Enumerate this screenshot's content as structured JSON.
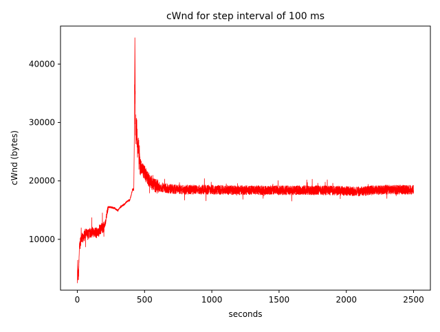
{
  "chart_data": {
    "type": "line",
    "title": "cWnd for step interval of 100 ms",
    "xlabel": "seconds",
    "ylabel": "cWnd (bytes)",
    "xlim": [
      -125,
      2625
    ],
    "ylim": [
      1300,
      46500
    ],
    "xticks": [
      0,
      500,
      1000,
      1500,
      2000,
      2500
    ],
    "xtick_labels": [
      "0",
      "500",
      "1000",
      "1500",
      "2000",
      "2500"
    ],
    "yticks": [
      10000,
      20000,
      30000,
      40000
    ],
    "ytick_labels": [
      "10000",
      "20000",
      "30000",
      "40000"
    ],
    "grid": false,
    "series": [
      {
        "color": "#ff0000",
        "noise_regime": [
          {
            "from": 0,
            "to": 10,
            "amp": 1000
          },
          {
            "from": 10,
            "to": 200,
            "amp": 900
          },
          {
            "from": 200,
            "to": 230,
            "amp": 500
          },
          {
            "from": 230,
            "to": 380,
            "amp": 150
          },
          {
            "from": 380,
            "to": 425,
            "amp": 200
          },
          {
            "from": 425,
            "to": 470,
            "amp": 2500
          },
          {
            "from": 470,
            "to": 600,
            "amp": 1200
          },
          {
            "from": 600,
            "to": 2500,
            "amp": 800
          }
        ],
        "points": [
          [
            0,
            3500
          ],
          [
            3,
            5800
          ],
          [
            6,
            3400
          ],
          [
            10,
            4000
          ],
          [
            15,
            8500
          ],
          [
            20,
            9000
          ],
          [
            30,
            10500
          ],
          [
            40,
            10000
          ],
          [
            60,
            11000
          ],
          [
            80,
            10800
          ],
          [
            100,
            11200
          ],
          [
            130,
            11300
          ],
          [
            150,
            11000
          ],
          [
            170,
            11800
          ],
          [
            190,
            12000
          ],
          [
            200,
            12200
          ],
          [
            210,
            13000
          ],
          [
            220,
            14500
          ],
          [
            230,
            15500
          ],
          [
            250,
            15500
          ],
          [
            280,
            15300
          ],
          [
            300,
            14900
          ],
          [
            320,
            15500
          ],
          [
            350,
            16000
          ],
          [
            370,
            16500
          ],
          [
            390,
            16700
          ],
          [
            400,
            17500
          ],
          [
            410,
            18500
          ],
          [
            420,
            18500
          ],
          [
            425,
            30000
          ],
          [
            428,
            44500
          ],
          [
            432,
            30000
          ],
          [
            436,
            28000
          ],
          [
            440,
            29000
          ],
          [
            445,
            27000
          ],
          [
            455,
            25000
          ],
          [
            465,
            23000
          ],
          [
            480,
            22000
          ],
          [
            500,
            21500
          ],
          [
            520,
            20500
          ],
          [
            540,
            20000
          ],
          [
            560,
            19500
          ],
          [
            580,
            19200
          ],
          [
            600,
            19000
          ],
          [
            700,
            18600
          ],
          [
            800,
            18500
          ],
          [
            1000,
            18500
          ],
          [
            1200,
            18400
          ],
          [
            1500,
            18400
          ],
          [
            1800,
            18400
          ],
          [
            2000,
            18300
          ],
          [
            2100,
            18200
          ],
          [
            2200,
            18400
          ],
          [
            2300,
            18500
          ],
          [
            2400,
            18500
          ],
          [
            2500,
            18500
          ]
        ]
      }
    ]
  }
}
